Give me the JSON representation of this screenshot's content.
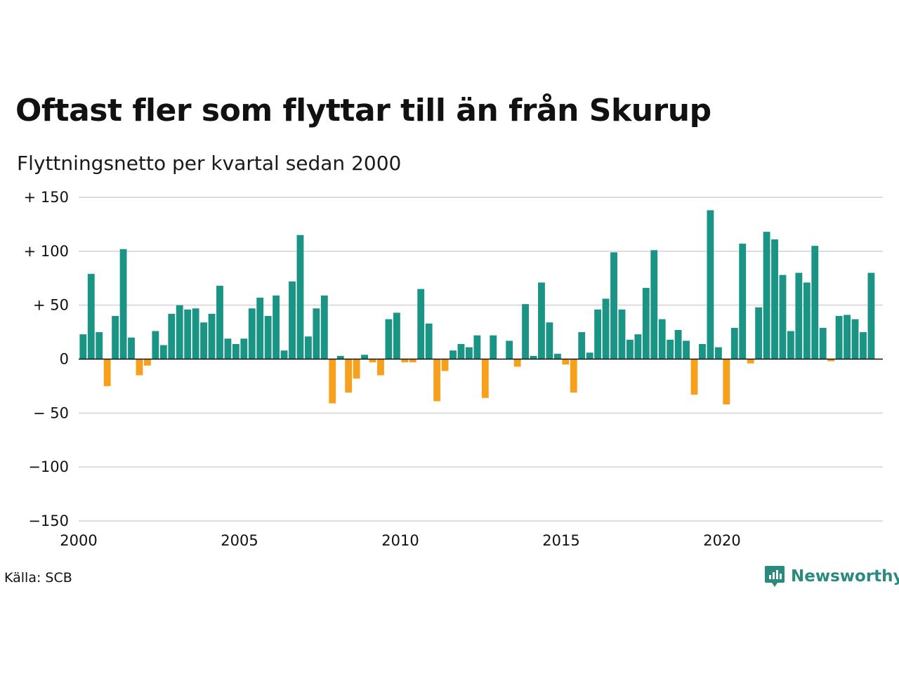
{
  "title": "Oftast fler som flyttar till än från Skurup",
  "subtitle": "Flyttningsnetto per kvartal sedan 2000",
  "source": "Källa: SCB",
  "brand": {
    "name": "Newsworthy",
    "icon": "newsworthy-logo-icon",
    "color": "#2a8a7d"
  },
  "colors": {
    "positive": "#1a9485",
    "negative": "#f7a01c",
    "grid": "#dddddd",
    "axis": "#111111"
  },
  "chart_data": {
    "type": "bar",
    "title": "Oftast fler som flyttar till än från Skurup",
    "subtitle": "Flyttningsnetto per kvartal sedan 2000",
    "x_start": 2000,
    "x_end": 2025,
    "periods_per_year": 4,
    "x_ticks": [
      2000,
      2005,
      2010,
      2015,
      2020
    ],
    "x_tick_labels": [
      "2000",
      "2005",
      "2010",
      "2015",
      "2020"
    ],
    "ylim": [
      -150,
      150
    ],
    "y_ticks": [
      150,
      100,
      50,
      0,
      -50,
      -100,
      -150
    ],
    "y_tick_labels": [
      "+ 150",
      "+ 100",
      "+  50",
      "0",
      "− 50",
      "−100",
      "−150"
    ],
    "grid": true,
    "values": [
      23,
      79,
      25,
      -25,
      40,
      102,
      20,
      -15,
      -6,
      26,
      13,
      42,
      50,
      46,
      47,
      34,
      42,
      68,
      19,
      14,
      19,
      47,
      57,
      40,
      59,
      8,
      72,
      115,
      21,
      47,
      59,
      -41,
      3,
      -31,
      -18,
      4,
      -3,
      -15,
      37,
      43,
      -3,
      -3,
      65,
      33,
      -39,
      -11,
      8,
      14,
      11,
      22,
      -36,
      22,
      0,
      17,
      -7,
      51,
      3,
      71,
      34,
      5,
      -5,
      -31,
      25,
      6,
      46,
      56,
      99,
      46,
      18,
      23,
      66,
      101,
      37,
      18,
      27,
      17,
      -33,
      14,
      138,
      11,
      -42,
      29,
      107,
      -4,
      48,
      118,
      111,
      78,
      26,
      80,
      71,
      105,
      29,
      -2,
      40,
      41,
      37,
      25,
      80
    ]
  }
}
